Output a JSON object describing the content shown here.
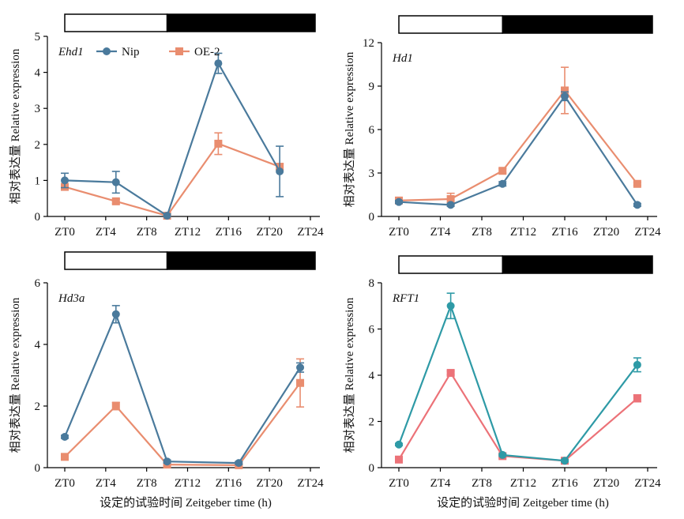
{
  "x_axis_title": "设定的试验时间 Zeitgeber time (h)",
  "y_axis_title": "相对表达量 Relative expression",
  "light_bar": {
    "light_start": 0,
    "light_end": 10,
    "dark_start": 10,
    "dark_end": 24
  },
  "colors": {
    "bar_dark": "#000000",
    "bar_light": "#ffffff"
  },
  "chart_data": [
    {
      "type": "line",
      "title": "Ehd1",
      "categories": [
        "ZT0",
        "ZT4",
        "ZT8",
        "ZT12",
        "ZT16",
        "ZT20",
        "ZT24"
      ],
      "x": [
        0,
        4,
        8,
        12,
        16,
        20,
        24
      ],
      "ylim": [
        0,
        5
      ],
      "yticks": [
        0,
        1,
        2,
        3,
        4,
        5
      ],
      "legend": "top-left",
      "series": [
        {
          "name": "Nip",
          "color": "#4a7a9c",
          "marker": "circle",
          "points": [
            [
              0,
              1.0,
              0.2
            ],
            [
              5,
              0.95,
              0.3
            ],
            [
              10,
              0.02,
              0.05
            ],
            [
              15,
              4.25,
              0.28
            ],
            [
              21,
              1.25,
              0.7
            ]
          ]
        },
        {
          "name": "OE-2",
          "color": "#e98d6f",
          "marker": "square",
          "points": [
            [
              0,
              0.82,
              0.08
            ],
            [
              5,
              0.42,
              0.06
            ],
            [
              10,
              0.02,
              0.03
            ],
            [
              15,
              2.02,
              0.3
            ],
            [
              21,
              1.38,
              0.08
            ]
          ]
        }
      ]
    },
    {
      "type": "line",
      "title": "Hd1",
      "categories": [
        "ZT0",
        "ZT4",
        "ZT8",
        "ZT12",
        "ZT16",
        "ZT20",
        "ZT24"
      ],
      "x": [
        0,
        4,
        8,
        12,
        16,
        20,
        24
      ],
      "ylim": [
        0,
        12
      ],
      "yticks": [
        0,
        3,
        6,
        9,
        12
      ],
      "series": [
        {
          "name": "Nip",
          "color": "#4a7a9c",
          "marker": "circle",
          "points": [
            [
              0,
              1.0,
              0.1
            ],
            [
              5,
              0.8,
              0.1
            ],
            [
              10,
              2.25,
              0.15
            ],
            [
              16,
              8.3,
              0.3
            ],
            [
              23,
              0.8,
              0.1
            ]
          ]
        },
        {
          "name": "OE-2",
          "color": "#e98d6f",
          "marker": "square",
          "points": [
            [
              0,
              1.1,
              0.15
            ],
            [
              5,
              1.2,
              0.4
            ],
            [
              10,
              3.15,
              0.15
            ],
            [
              16,
              8.7,
              1.6
            ],
            [
              23,
              2.25,
              0.1
            ]
          ]
        }
      ]
    },
    {
      "type": "line",
      "title": "Hd3a",
      "categories": [
        "ZT0",
        "ZT4",
        "ZT8",
        "ZT12",
        "ZT16",
        "ZT20",
        "ZT24"
      ],
      "x": [
        0,
        4,
        8,
        12,
        16,
        20,
        24
      ],
      "ylim": [
        0,
        6
      ],
      "yticks": [
        0,
        2,
        4,
        6
      ],
      "series": [
        {
          "name": "Nip",
          "color": "#4a7a9c",
          "marker": "circle",
          "points": [
            [
              0,
              1.0,
              0.05
            ],
            [
              5,
              4.98,
              0.28
            ],
            [
              10,
              0.2,
              0.05
            ],
            [
              17,
              0.15,
              0.05
            ],
            [
              23,
              3.25,
              0.15
            ]
          ]
        },
        {
          "name": "OE-2",
          "color": "#e98d6f",
          "marker": "square",
          "points": [
            [
              0,
              0.35,
              0.05
            ],
            [
              5,
              2.0,
              0.12
            ],
            [
              10,
              0.1,
              0.03
            ],
            [
              17,
              0.08,
              0.03
            ],
            [
              23,
              2.75,
              0.78
            ]
          ]
        }
      ]
    },
    {
      "type": "line",
      "title": "RFT1",
      "categories": [
        "ZT0",
        "ZT4",
        "ZT8",
        "ZT12",
        "ZT16",
        "ZT20",
        "ZT24"
      ],
      "x": [
        0,
        4,
        8,
        12,
        16,
        20,
        24
      ],
      "ylim": [
        0,
        8
      ],
      "yticks": [
        0,
        2,
        4,
        6,
        8
      ],
      "series": [
        {
          "name": "Nip",
          "color": "#2e9aa6",
          "marker": "circle",
          "points": [
            [
              0,
              1.0,
              0.05
            ],
            [
              5,
              7.0,
              0.55
            ],
            [
              10,
              0.55,
              0.05
            ],
            [
              16,
              0.3,
              0.05
            ],
            [
              23,
              4.45,
              0.3
            ]
          ]
        },
        {
          "name": "OE-2",
          "color": "#ec7278",
          "marker": "square",
          "points": [
            [
              0,
              0.35,
              0.05
            ],
            [
              5,
              4.1,
              0.08
            ],
            [
              10,
              0.5,
              0.05
            ],
            [
              16,
              0.3,
              0.05
            ],
            [
              23,
              3.0,
              0.15
            ]
          ]
        }
      ]
    }
  ]
}
